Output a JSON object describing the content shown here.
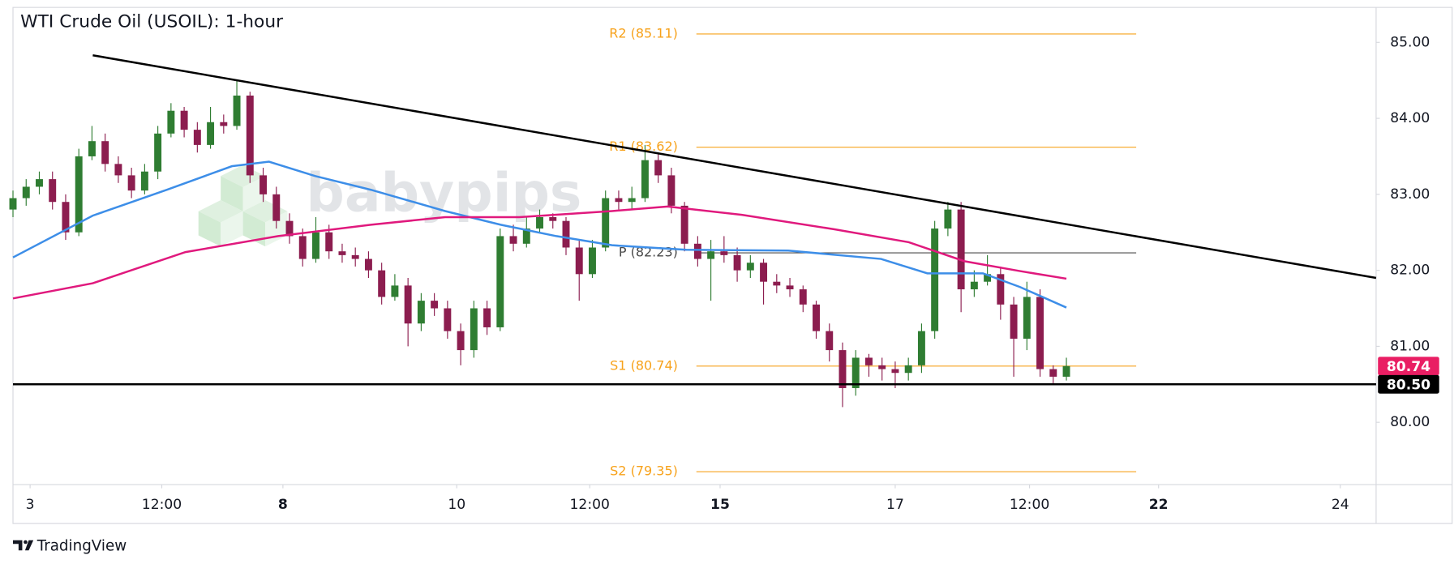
{
  "chart_data": {
    "type": "candlestick",
    "title": "WTI Crude Oil (USOIL): 1-hour",
    "watermark": "babypips",
    "footer": "TradingView",
    "up_color": "#2f7d32",
    "down_color": "#8c1d4f",
    "open": [
      82.8,
      82.95,
      83.1,
      83.2,
      82.9,
      82.5,
      83.5,
      83.7,
      83.4,
      83.25,
      83.05,
      83.3,
      83.8,
      84.1,
      83.85,
      83.65,
      83.95,
      83.9,
      84.3,
      83.25,
      83.0,
      82.65,
      82.45,
      82.15,
      82.5,
      82.25,
      82.2,
      82.15,
      82.0,
      81.65,
      81.8,
      81.3,
      81.6,
      81.5,
      81.2,
      80.95,
      81.5,
      81.25,
      82.45,
      82.35,
      82.55,
      82.7,
      82.65,
      82.3,
      81.95,
      82.3,
      82.95,
      82.9,
      82.95,
      83.45,
      83.25,
      82.85,
      82.35,
      82.15,
      82.25,
      82.2,
      82.0,
      82.1,
      81.85,
      81.8,
      81.75,
      81.55,
      81.2,
      80.95,
      80.45,
      80.85,
      80.75,
      80.7,
      80.65,
      80.75,
      81.2,
      82.55,
      82.8,
      81.75,
      81.85,
      81.95,
      81.55,
      81.1,
      81.65,
      80.7,
      80.6
    ],
    "high": [
      83.05,
      83.2,
      83.3,
      83.3,
      83.0,
      83.6,
      83.9,
      83.8,
      83.5,
      83.35,
      83.4,
      83.9,
      84.2,
      84.15,
      83.95,
      84.15,
      84.05,
      84.5,
      84.35,
      83.35,
      83.1,
      82.75,
      82.55,
      82.7,
      82.6,
      82.35,
      82.3,
      82.25,
      82.1,
      81.95,
      81.9,
      81.7,
      81.7,
      81.6,
      81.3,
      81.6,
      81.6,
      82.55,
      82.6,
      82.7,
      82.8,
      82.75,
      82.7,
      82.4,
      82.4,
      83.05,
      83.05,
      83.1,
      83.65,
      83.55,
      83.35,
      82.9,
      82.45,
      82.4,
      82.45,
      82.3,
      82.2,
      82.15,
      81.95,
      81.9,
      81.8,
      81.6,
      81.3,
      81.05,
      80.95,
      80.9,
      80.85,
      80.8,
      80.85,
      81.3,
      82.65,
      82.9,
      82.9,
      82.0,
      82.2,
      82.05,
      81.65,
      81.85,
      81.75,
      80.75,
      80.85
    ],
    "low": [
      82.7,
      82.85,
      83.0,
      82.8,
      82.4,
      82.45,
      83.45,
      83.3,
      83.15,
      82.95,
      83.0,
      83.2,
      83.75,
      83.75,
      83.55,
      83.6,
      83.8,
      83.85,
      83.15,
      82.9,
      82.55,
      82.35,
      82.05,
      82.1,
      82.15,
      82.1,
      82.05,
      81.9,
      81.55,
      81.6,
      81.0,
      81.2,
      81.4,
      81.1,
      80.75,
      80.85,
      81.15,
      81.2,
      82.25,
      82.3,
      82.5,
      82.55,
      82.2,
      81.6,
      81.9,
      82.25,
      82.8,
      82.8,
      82.9,
      83.15,
      82.75,
      82.25,
      82.05,
      81.6,
      82.1,
      81.85,
      81.9,
      81.55,
      81.7,
      81.65,
      81.45,
      81.1,
      80.8,
      80.2,
      80.35,
      80.6,
      80.55,
      80.45,
      80.55,
      80.65,
      81.1,
      82.45,
      81.45,
      81.65,
      81.8,
      81.35,
      80.6,
      80.95,
      80.6,
      80.5,
      80.55
    ],
    "close": [
      82.95,
      83.1,
      83.2,
      82.9,
      82.5,
      83.5,
      83.7,
      83.4,
      83.25,
      83.05,
      83.3,
      83.8,
      84.1,
      83.85,
      83.65,
      83.95,
      83.9,
      84.3,
      83.25,
      83.0,
      82.65,
      82.45,
      82.15,
      82.5,
      82.25,
      82.2,
      82.15,
      82.0,
      81.65,
      81.8,
      81.3,
      81.6,
      81.5,
      81.2,
      80.95,
      81.5,
      81.25,
      82.45,
      82.35,
      82.55,
      82.7,
      82.65,
      82.3,
      81.95,
      82.3,
      82.95,
      82.9,
      82.95,
      83.45,
      83.25,
      82.85,
      82.35,
      82.15,
      82.25,
      82.2,
      82.0,
      82.1,
      81.85,
      81.8,
      81.75,
      81.55,
      81.2,
      80.95,
      80.45,
      80.85,
      80.75,
      80.7,
      80.65,
      80.75,
      81.2,
      82.55,
      82.8,
      81.75,
      81.85,
      81.95,
      81.55,
      81.1,
      81.65,
      80.7,
      80.6,
      80.74
    ],
    "moving_averages": [
      {
        "color": "#3d8ee8",
        "x": [
          0,
          6.06,
          11.69,
          16.62,
          19.44,
          22.96,
          27.18,
          32.82,
          37.04,
          41.27,
          45.49,
          51.13,
          58.87,
          65.92,
          69.44,
          73.66,
          76.48,
          80.0
        ],
        "values": [
          82.17,
          82.72,
          83.06,
          83.37,
          83.43,
          83.24,
          83.06,
          82.78,
          82.6,
          82.45,
          82.33,
          82.27,
          82.26,
          82.15,
          81.96,
          81.96,
          81.78,
          81.51
        ]
      },
      {
        "color": "#e0197d",
        "x": [
          0,
          6.06,
          13.1,
          20.14,
          27.18,
          32.82,
          38.45,
          45.49,
          49.72,
          55.35,
          62.39,
          68.03,
          72.25,
          76.48,
          80.0
        ],
        "values": [
          81.63,
          81.83,
          82.24,
          82.45,
          82.6,
          82.7,
          82.7,
          82.78,
          82.84,
          82.73,
          82.54,
          82.37,
          82.12,
          81.99,
          81.89
        ]
      }
    ],
    "trendline": {
      "color": "#000000",
      "x": [
        6.06,
        103.52
      ],
      "values": [
        84.83,
        81.9
      ]
    },
    "support": {
      "color": "#000000",
      "value": 80.5
    },
    "pivot_xlim": [
      51.9,
      85.3
    ],
    "pivots": [
      {
        "label": "R2 (85.11)",
        "value": 85.11,
        "color": "#f7a21b"
      },
      {
        "label": "R1 (83.62)",
        "value": 83.62,
        "color": "#f7a21b"
      },
      {
        "label": "P (82.23)",
        "value": 82.23,
        "color": "#4a4a4a"
      },
      {
        "label": "S1 (80.74)",
        "value": 80.74,
        "color": "#f7a21b"
      },
      {
        "label": "S2 (79.35)",
        "value": 79.35,
        "color": "#f7a21b"
      }
    ],
    "price_badges": [
      {
        "value": 80.74,
        "label": "80.74",
        "color": "#e91e63"
      },
      {
        "value": 80.5,
        "label": "80.50",
        "color": "#000000"
      }
    ],
    "xlim": [
      0,
      103.52
    ],
    "ylim": [
      79.18,
      85.46
    ],
    "xticks": [
      {
        "value": 1.3,
        "label": "3"
      },
      {
        "value": 11.3,
        "label": "12:00"
      },
      {
        "value": 20.5,
        "label": "8",
        "bold": true
      },
      {
        "value": 33.7,
        "label": "10"
      },
      {
        "value": 43.8,
        "label": "12:00"
      },
      {
        "value": 53.7,
        "label": "15",
        "bold": true
      },
      {
        "value": 67.0,
        "label": "17"
      },
      {
        "value": 77.2,
        "label": "12:00"
      },
      {
        "value": 87.0,
        "label": "22",
        "bold": true
      },
      {
        "value": 100.8,
        "label": "24"
      }
    ],
    "yticks": [
      {
        "value": 80,
        "label": "80.00"
      },
      {
        "value": 81,
        "label": "81.00"
      },
      {
        "value": 82,
        "label": "82.00"
      },
      {
        "value": 83,
        "label": "83.00"
      },
      {
        "value": 84,
        "label": "84.00"
      },
      {
        "value": 85,
        "label": "85.00"
      }
    ]
  }
}
